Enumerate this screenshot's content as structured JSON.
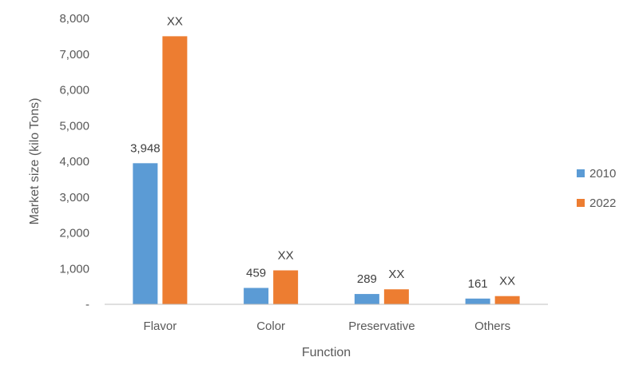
{
  "chart_data": {
    "type": "bar",
    "title": "",
    "xlabel": "Function",
    "ylabel": "Market size (kilo Tons)",
    "categories": [
      "Flavor",
      "Color",
      "Preservative",
      "Others"
    ],
    "ylim": [
      0,
      8000
    ],
    "yticks": [
      0,
      1000,
      2000,
      3000,
      4000,
      5000,
      6000,
      7000,
      8000
    ],
    "ytick_labels": [
      "-",
      "1,000",
      "2,000",
      "3,000",
      "4,000",
      "5,000",
      "6,000",
      "7,000",
      "8,000"
    ],
    "grid": false,
    "legend_position": "right",
    "series": [
      {
        "name": "2010",
        "color": "#5b9bd5",
        "values": [
          3948,
          459,
          289,
          161
        ],
        "data_labels": [
          "3,948",
          "459",
          "289",
          "161"
        ]
      },
      {
        "name": "2022",
        "color": "#ed7d31",
        "values": [
          7500,
          950,
          420,
          230
        ],
        "data_labels": [
          "XX",
          "XX",
          "XX",
          "XX"
        ]
      }
    ]
  }
}
